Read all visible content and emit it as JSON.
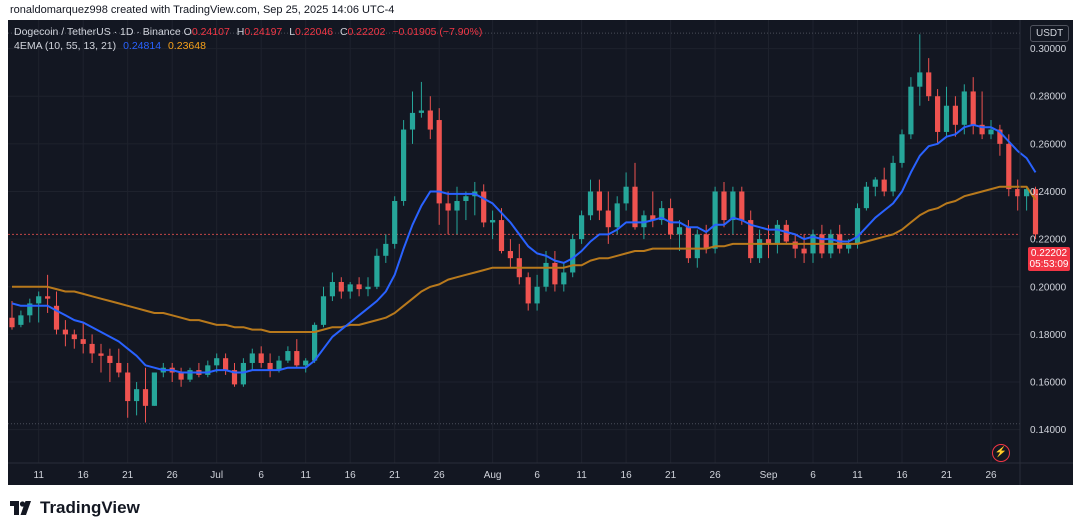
{
  "attribution": "ronaldomarquez998 created with TradingView.com, Sep 25, 2025 14:06 UTC-4",
  "legend": {
    "symbol": "Dogecoin / TetherUS · 1D · Binance",
    "open_label": "O",
    "open": "0.24107",
    "high_label": "H",
    "high": "0.24197",
    "low_label": "L",
    "low": "0.22046",
    "close_label": "C",
    "close": "0.22202",
    "change": "−0.01905 (−7.90%)",
    "indicator": "4EMA (10, 55, 13, 21)",
    "ema_fast": "0.24814",
    "ema_slow": "0.23648"
  },
  "currency": "USDT",
  "price_badge": {
    "price": "0.22202",
    "countdown": "05:53:09"
  },
  "brand": "TradingView",
  "colors": {
    "up": "#26a69a",
    "down": "#ef5350",
    "ema_fast": "#2962ff",
    "ema_slow": "#b8791c",
    "background": "#131722",
    "grid": "#1e222d",
    "text": "#d1d4dc"
  },
  "chart_data": {
    "type": "candlestick",
    "ylim": [
      0.126,
      0.312
    ],
    "y_ticks": [
      0.14,
      0.16,
      0.18,
      0.2,
      0.22,
      0.24,
      0.26,
      0.28,
      0.3
    ],
    "y_tick_labels": [
      "0.14000",
      "0.16000",
      "0.18000",
      "0.20000",
      "0.22000",
      "0.24000",
      "0.26000",
      "0.28000",
      "0.30000"
    ],
    "x_ticks": [
      {
        "label": "11",
        "idx": 3
      },
      {
        "label": "16",
        "idx": 8
      },
      {
        "label": "21",
        "idx": 13
      },
      {
        "label": "26",
        "idx": 18
      },
      {
        "label": "Jul",
        "idx": 23
      },
      {
        "label": "6",
        "idx": 28
      },
      {
        "label": "11",
        "idx": 33
      },
      {
        "label": "16",
        "idx": 38
      },
      {
        "label": "21",
        "idx": 43
      },
      {
        "label": "26",
        "idx": 48
      },
      {
        "label": "Aug",
        "idx": 54
      },
      {
        "label": "6",
        "idx": 59
      },
      {
        "label": "11",
        "idx": 64
      },
      {
        "label": "16",
        "idx": 69
      },
      {
        "label": "21",
        "idx": 74
      },
      {
        "label": "26",
        "idx": 79
      },
      {
        "label": "Sep",
        "idx": 85
      },
      {
        "label": "6",
        "idx": 90
      },
      {
        "label": "11",
        "idx": 95
      },
      {
        "label": "16",
        "idx": 100
      },
      {
        "label": "21",
        "idx": 105
      },
      {
        "label": "26",
        "idx": 110
      }
    ],
    "hlines": [
      0.3065,
      0.1425
    ],
    "candles": [
      [
        0.187,
        0.194,
        0.182,
        0.183
      ],
      [
        0.184,
        0.19,
        0.183,
        0.188
      ],
      [
        0.188,
        0.195,
        0.185,
        0.193
      ],
      [
        0.193,
        0.198,
        0.185,
        0.196
      ],
      [
        0.196,
        0.205,
        0.189,
        0.195
      ],
      [
        0.192,
        0.198,
        0.18,
        0.182
      ],
      [
        0.182,
        0.186,
        0.175,
        0.18
      ],
      [
        0.18,
        0.182,
        0.174,
        0.178
      ],
      [
        0.178,
        0.185,
        0.172,
        0.176
      ],
      [
        0.176,
        0.18,
        0.168,
        0.172
      ],
      [
        0.172,
        0.176,
        0.164,
        0.171
      ],
      [
        0.171,
        0.174,
        0.16,
        0.168
      ],
      [
        0.168,
        0.174,
        0.162,
        0.164
      ],
      [
        0.164,
        0.168,
        0.145,
        0.152
      ],
      [
        0.152,
        0.16,
        0.146,
        0.157
      ],
      [
        0.157,
        0.166,
        0.143,
        0.15
      ],
      [
        0.15,
        0.164,
        0.15,
        0.164
      ],
      [
        0.164,
        0.168,
        0.162,
        0.166
      ],
      [
        0.166,
        0.168,
        0.16,
        0.164
      ],
      [
        0.164,
        0.166,
        0.158,
        0.161
      ],
      [
        0.161,
        0.166,
        0.16,
        0.165
      ],
      [
        0.165,
        0.168,
        0.162,
        0.163
      ],
      [
        0.163,
        0.169,
        0.162,
        0.167
      ],
      [
        0.167,
        0.172,
        0.164,
        0.17
      ],
      [
        0.17,
        0.172,
        0.163,
        0.165
      ],
      [
        0.165,
        0.168,
        0.158,
        0.159
      ],
      [
        0.159,
        0.17,
        0.158,
        0.168
      ],
      [
        0.168,
        0.174,
        0.165,
        0.172
      ],
      [
        0.172,
        0.175,
        0.166,
        0.168
      ],
      [
        0.168,
        0.172,
        0.162,
        0.165
      ],
      [
        0.165,
        0.171,
        0.164,
        0.169
      ],
      [
        0.169,
        0.175,
        0.168,
        0.173
      ],
      [
        0.173,
        0.178,
        0.166,
        0.167
      ],
      [
        0.167,
        0.17,
        0.164,
        0.169
      ],
      [
        0.169,
        0.185,
        0.168,
        0.184
      ],
      [
        0.184,
        0.2,
        0.183,
        0.196
      ],
      [
        0.196,
        0.206,
        0.194,
        0.202
      ],
      [
        0.202,
        0.204,
        0.195,
        0.198
      ],
      [
        0.198,
        0.202,
        0.195,
        0.201
      ],
      [
        0.201,
        0.204,
        0.196,
        0.199
      ],
      [
        0.199,
        0.204,
        0.196,
        0.2
      ],
      [
        0.2,
        0.216,
        0.199,
        0.213
      ],
      [
        0.213,
        0.222,
        0.21,
        0.218
      ],
      [
        0.218,
        0.238,
        0.216,
        0.236
      ],
      [
        0.236,
        0.27,
        0.234,
        0.266
      ],
      [
        0.266,
        0.282,
        0.26,
        0.273
      ],
      [
        0.273,
        0.286,
        0.271,
        0.274
      ],
      [
        0.274,
        0.28,
        0.262,
        0.266
      ],
      [
        0.27,
        0.275,
        0.226,
        0.235
      ],
      [
        0.235,
        0.24,
        0.222,
        0.232
      ],
      [
        0.232,
        0.242,
        0.222,
        0.236
      ],
      [
        0.236,
        0.24,
        0.228,
        0.238
      ],
      [
        0.238,
        0.244,
        0.23,
        0.24
      ],
      [
        0.24,
        0.243,
        0.225,
        0.227
      ],
      [
        0.227,
        0.232,
        0.22,
        0.228
      ],
      [
        0.228,
        0.233,
        0.214,
        0.215
      ],
      [
        0.215,
        0.22,
        0.208,
        0.212
      ],
      [
        0.212,
        0.218,
        0.201,
        0.204
      ],
      [
        0.204,
        0.206,
        0.19,
        0.193
      ],
      [
        0.193,
        0.205,
        0.19,
        0.2
      ],
      [
        0.2,
        0.215,
        0.198,
        0.21
      ],
      [
        0.21,
        0.215,
        0.198,
        0.201
      ],
      [
        0.201,
        0.21,
        0.198,
        0.206
      ],
      [
        0.206,
        0.222,
        0.204,
        0.22
      ],
      [
        0.22,
        0.232,
        0.218,
        0.23
      ],
      [
        0.23,
        0.245,
        0.228,
        0.24
      ],
      [
        0.24,
        0.245,
        0.228,
        0.232
      ],
      [
        0.232,
        0.24,
        0.218,
        0.225
      ],
      [
        0.225,
        0.238,
        0.222,
        0.235
      ],
      [
        0.235,
        0.248,
        0.232,
        0.242
      ],
      [
        0.242,
        0.252,
        0.224,
        0.225
      ],
      [
        0.225,
        0.232,
        0.22,
        0.23
      ],
      [
        0.23,
        0.24,
        0.225,
        0.228
      ],
      [
        0.228,
        0.236,
        0.226,
        0.233
      ],
      [
        0.233,
        0.237,
        0.22,
        0.222
      ],
      [
        0.222,
        0.228,
        0.215,
        0.225
      ],
      [
        0.225,
        0.228,
        0.21,
        0.212
      ],
      [
        0.212,
        0.224,
        0.208,
        0.222
      ],
      [
        0.222,
        0.226,
        0.214,
        0.216
      ],
      [
        0.216,
        0.242,
        0.214,
        0.24
      ],
      [
        0.24,
        0.244,
        0.225,
        0.228
      ],
      [
        0.228,
        0.242,
        0.222,
        0.24
      ],
      [
        0.24,
        0.242,
        0.226,
        0.228
      ],
      [
        0.228,
        0.232,
        0.21,
        0.212
      ],
      [
        0.212,
        0.224,
        0.21,
        0.22
      ],
      [
        0.22,
        0.226,
        0.212,
        0.218
      ],
      [
        0.218,
        0.228,
        0.214,
        0.226
      ],
      [
        0.226,
        0.228,
        0.218,
        0.219
      ],
      [
        0.219,
        0.222,
        0.212,
        0.216
      ],
      [
        0.216,
        0.222,
        0.21,
        0.214
      ],
      [
        0.214,
        0.224,
        0.21,
        0.222
      ],
      [
        0.222,
        0.226,
        0.212,
        0.214
      ],
      [
        0.214,
        0.224,
        0.212,
        0.222
      ],
      [
        0.222,
        0.226,
        0.214,
        0.216
      ],
      [
        0.216,
        0.22,
        0.214,
        0.218
      ],
      [
        0.218,
        0.235,
        0.216,
        0.233
      ],
      [
        0.233,
        0.244,
        0.232,
        0.242
      ],
      [
        0.242,
        0.246,
        0.238,
        0.245
      ],
      [
        0.245,
        0.25,
        0.238,
        0.24
      ],
      [
        0.24,
        0.255,
        0.238,
        0.252
      ],
      [
        0.252,
        0.266,
        0.25,
        0.264
      ],
      [
        0.264,
        0.288,
        0.262,
        0.284
      ],
      [
        0.284,
        0.306,
        0.276,
        0.29
      ],
      [
        0.29,
        0.296,
        0.278,
        0.28
      ],
      [
        0.28,
        0.283,
        0.26,
        0.265
      ],
      [
        0.265,
        0.284,
        0.263,
        0.276
      ],
      [
        0.276,
        0.28,
        0.263,
        0.268
      ],
      [
        0.268,
        0.285,
        0.264,
        0.282
      ],
      [
        0.282,
        0.288,
        0.264,
        0.268
      ],
      [
        0.268,
        0.282,
        0.262,
        0.264
      ],
      [
        0.264,
        0.27,
        0.262,
        0.266
      ],
      [
        0.266,
        0.268,
        0.255,
        0.26
      ],
      [
        0.26,
        0.264,
        0.238,
        0.241
      ],
      [
        0.241,
        0.245,
        0.232,
        0.238
      ],
      [
        0.238,
        0.242,
        0.232,
        0.241
      ],
      [
        0.241,
        0.242,
        0.22,
        0.222
      ]
    ],
    "ema_fast_values": [
      0.193,
      0.192,
      0.192,
      0.192,
      0.192,
      0.19,
      0.188,
      0.186,
      0.185,
      0.183,
      0.181,
      0.179,
      0.177,
      0.174,
      0.171,
      0.167,
      0.166,
      0.165,
      0.165,
      0.164,
      0.164,
      0.164,
      0.164,
      0.165,
      0.165,
      0.164,
      0.164,
      0.165,
      0.165,
      0.165,
      0.165,
      0.166,
      0.166,
      0.166,
      0.169,
      0.174,
      0.179,
      0.182,
      0.185,
      0.188,
      0.191,
      0.194,
      0.198,
      0.205,
      0.216,
      0.226,
      0.234,
      0.24,
      0.24,
      0.239,
      0.239,
      0.239,
      0.239,
      0.237,
      0.235,
      0.231,
      0.227,
      0.222,
      0.217,
      0.214,
      0.213,
      0.211,
      0.21,
      0.212,
      0.215,
      0.219,
      0.222,
      0.222,
      0.224,
      0.227,
      0.227,
      0.227,
      0.228,
      0.229,
      0.227,
      0.227,
      0.225,
      0.225,
      0.223,
      0.226,
      0.226,
      0.229,
      0.228,
      0.226,
      0.225,
      0.224,
      0.224,
      0.223,
      0.222,
      0.22,
      0.221,
      0.22,
      0.22,
      0.219,
      0.219,
      0.221,
      0.225,
      0.229,
      0.232,
      0.235,
      0.24,
      0.248,
      0.255,
      0.259,
      0.26,
      0.263,
      0.264,
      0.267,
      0.268,
      0.267,
      0.267,
      0.265,
      0.261,
      0.257,
      0.254,
      0.248
    ],
    "ema_slow_values": [
      0.2,
      0.2,
      0.2,
      0.2,
      0.2,
      0.199,
      0.198,
      0.198,
      0.197,
      0.196,
      0.195,
      0.194,
      0.193,
      0.192,
      0.191,
      0.19,
      0.189,
      0.189,
      0.188,
      0.187,
      0.186,
      0.186,
      0.185,
      0.184,
      0.184,
      0.183,
      0.183,
      0.182,
      0.182,
      0.181,
      0.181,
      0.181,
      0.181,
      0.181,
      0.181,
      0.182,
      0.183,
      0.183,
      0.184,
      0.184,
      0.185,
      0.186,
      0.187,
      0.189,
      0.192,
      0.195,
      0.198,
      0.2,
      0.201,
      0.203,
      0.204,
      0.205,
      0.206,
      0.207,
      0.208,
      0.208,
      0.208,
      0.208,
      0.208,
      0.208,
      0.208,
      0.208,
      0.208,
      0.209,
      0.209,
      0.211,
      0.212,
      0.212,
      0.213,
      0.214,
      0.215,
      0.215,
      0.216,
      0.216,
      0.216,
      0.216,
      0.216,
      0.216,
      0.216,
      0.217,
      0.217,
      0.218,
      0.218,
      0.218,
      0.218,
      0.218,
      0.218,
      0.218,
      0.218,
      0.218,
      0.218,
      0.218,
      0.218,
      0.218,
      0.218,
      0.218,
      0.219,
      0.22,
      0.221,
      0.222,
      0.224,
      0.227,
      0.23,
      0.232,
      0.233,
      0.235,
      0.236,
      0.238,
      0.239,
      0.24,
      0.241,
      0.242,
      0.242,
      0.242,
      0.242,
      0.2365
    ]
  }
}
